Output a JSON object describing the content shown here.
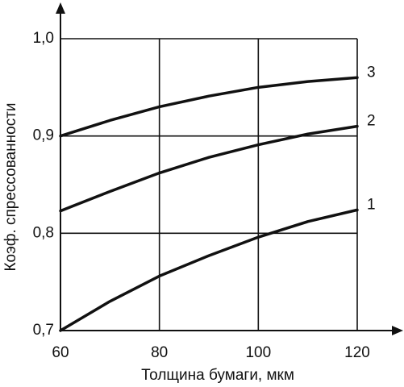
{
  "chart_data": {
    "type": "line",
    "x_label": "Толщина бумаги, мкм",
    "y_label": "Коэф. спрессованности",
    "x": [
      60,
      70,
      80,
      90,
      100,
      110,
      120
    ],
    "series": [
      {
        "name": "1",
        "color": "#111111",
        "values": [
          0.7,
          0.73,
          0.756,
          0.777,
          0.796,
          0.812,
          0.824
        ]
      },
      {
        "name": "2",
        "color": "#111111",
        "values": [
          0.823,
          0.843,
          0.862,
          0.878,
          0.891,
          0.902,
          0.91
        ]
      },
      {
        "name": "3",
        "color": "#111111",
        "values": [
          0.9,
          0.916,
          0.93,
          0.941,
          0.95,
          0.956,
          0.96
        ]
      }
    ],
    "xlim": [
      60,
      120
    ],
    "xticks": [
      60,
      80,
      100,
      120
    ],
    "ylim": [
      0.7,
      1.0
    ],
    "yticks": [
      {
        "value": 0.7,
        "label": "0,7"
      },
      {
        "value": 0.8,
        "label": "0,8"
      },
      {
        "value": 0.9,
        "label": "0,9"
      },
      {
        "value": 1.0,
        "label": "1,0"
      }
    ],
    "grid": true
  }
}
